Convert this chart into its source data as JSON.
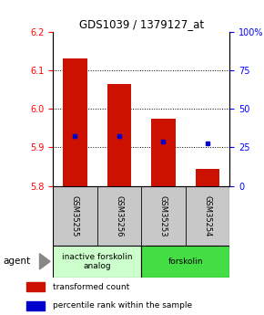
{
  "title": "GDS1039 / 1379127_at",
  "samples": [
    "GSM35255",
    "GSM35256",
    "GSM35253",
    "GSM35254"
  ],
  "bar_tops": [
    6.13,
    6.065,
    5.975,
    5.845
  ],
  "bar_bottom": 5.8,
  "blue_markers": [
    5.93,
    5.93,
    5.915,
    5.91
  ],
  "ylim": [
    5.8,
    6.2
  ],
  "yticks_left": [
    5.8,
    5.9,
    6.0,
    6.1,
    6.2
  ],
  "yticks_right_vals": [
    5.8,
    5.9,
    6.0,
    6.1,
    6.2
  ],
  "yticks_right_labels": [
    "0",
    "25",
    "50",
    "75",
    "100%"
  ],
  "bar_color": "#cc1100",
  "blue_color": "#0000cc",
  "agent_groups": [
    {
      "label": "inactive forskolin\nanalog",
      "span": [
        0,
        2
      ],
      "color": "#ccffcc"
    },
    {
      "label": "forskolin",
      "span": [
        2,
        4
      ],
      "color": "#44dd44"
    }
  ],
  "legend_red_label": "transformed count",
  "legend_blue_label": "percentile rank within the sample",
  "bar_width": 0.55,
  "figsize": [
    2.9,
    3.45
  ],
  "dpi": 100
}
